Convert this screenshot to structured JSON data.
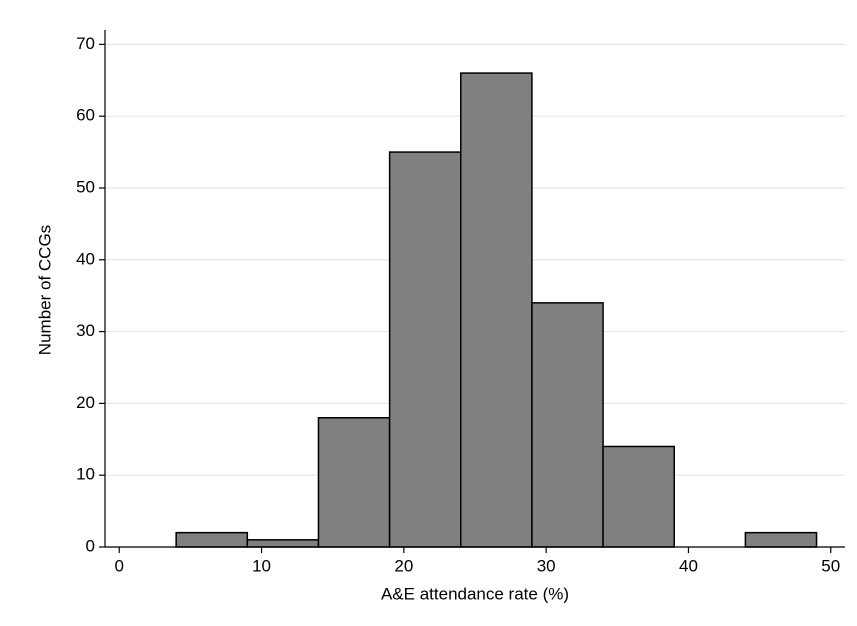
{
  "chart_data": {
    "type": "histogram",
    "x_label": "A&E attendance rate (%)",
    "y_label": "Number of CCGs",
    "bins": [
      4,
      9,
      14,
      19,
      24,
      29,
      34,
      39,
      44,
      49
    ],
    "values": [
      2,
      1,
      18,
      55,
      66,
      34,
      14,
      0,
      2
    ],
    "color": "#808080",
    "xlim": [
      -1,
      51
    ],
    "xticks": [
      0,
      10,
      20,
      30,
      40,
      50
    ],
    "ylim": [
      0,
      72
    ],
    "yticks": [
      0,
      10,
      20,
      30,
      40,
      50,
      60,
      70
    ],
    "grid": true
  }
}
